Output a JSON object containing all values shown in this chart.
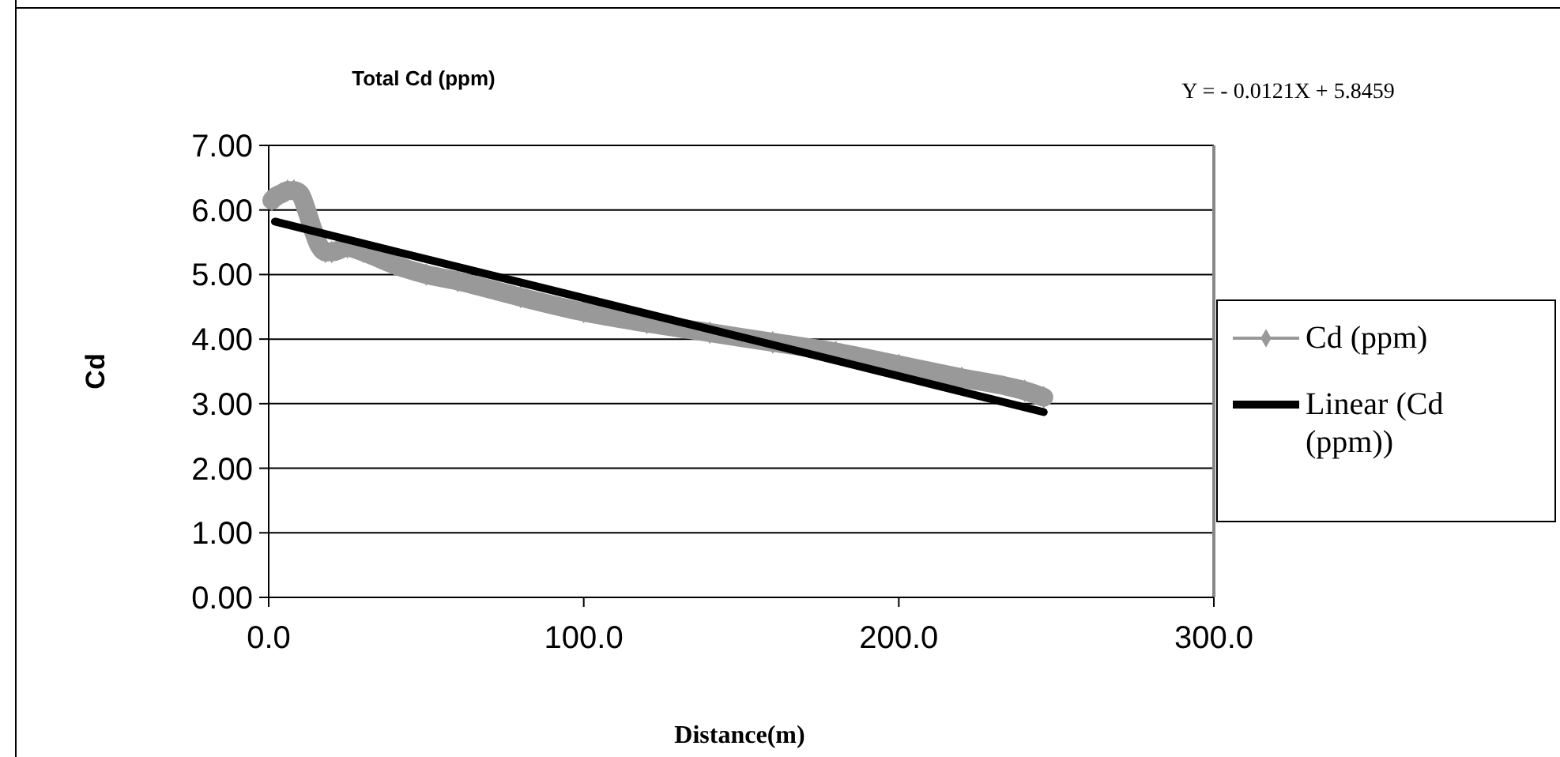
{
  "chart_data": {
    "type": "line",
    "title": "Total Cd (ppm)",
    "xlabel": "Distance(m)",
    "ylabel": "Cd",
    "annotations": [
      "Y = - 0.0121X + 5.8459"
    ],
    "x": [
      1,
      2,
      4,
      6,
      8,
      10,
      12,
      14,
      16,
      18,
      20,
      25,
      30,
      40,
      50,
      60,
      80,
      100,
      120,
      140,
      160,
      180,
      200,
      220,
      240,
      246
    ],
    "series": [
      {
        "name": "Cd (ppm)",
        "color": "#999999",
        "marker": "diamond",
        "values": [
          6.15,
          6.2,
          6.25,
          6.3,
          6.3,
          6.25,
          6.0,
          5.7,
          5.45,
          5.35,
          5.35,
          5.42,
          5.35,
          5.15,
          5.0,
          4.9,
          4.65,
          4.42,
          4.25,
          4.1,
          3.95,
          3.8,
          3.6,
          3.4,
          3.2,
          3.1
        ]
      },
      {
        "name": "Linear (Cd (ppm))",
        "color": "#000000",
        "type": "line",
        "marker": "none",
        "x": [
          2,
          246
        ],
        "values": [
          5.82,
          2.87
        ]
      }
    ],
    "xlim": [
      0,
      300
    ],
    "xticks": [
      {
        "value": 0,
        "label": "0.0"
      },
      {
        "value": 100,
        "label": "100.0"
      },
      {
        "value": 200,
        "label": "200.0"
      },
      {
        "value": 300,
        "label": "300.0"
      }
    ],
    "ylim": [
      0,
      7
    ],
    "yticks": [
      {
        "value": 0,
        "label": "0.00"
      },
      {
        "value": 1,
        "label": "1.00"
      },
      {
        "value": 2,
        "label": "2.00"
      },
      {
        "value": 3,
        "label": "3.00"
      },
      {
        "value": 4,
        "label": "4.00"
      },
      {
        "value": 5,
        "label": "5.00"
      },
      {
        "value": 6,
        "label": "6.00"
      },
      {
        "value": 7,
        "label": "7.00"
      }
    ],
    "grid": "y",
    "legend": "right"
  }
}
